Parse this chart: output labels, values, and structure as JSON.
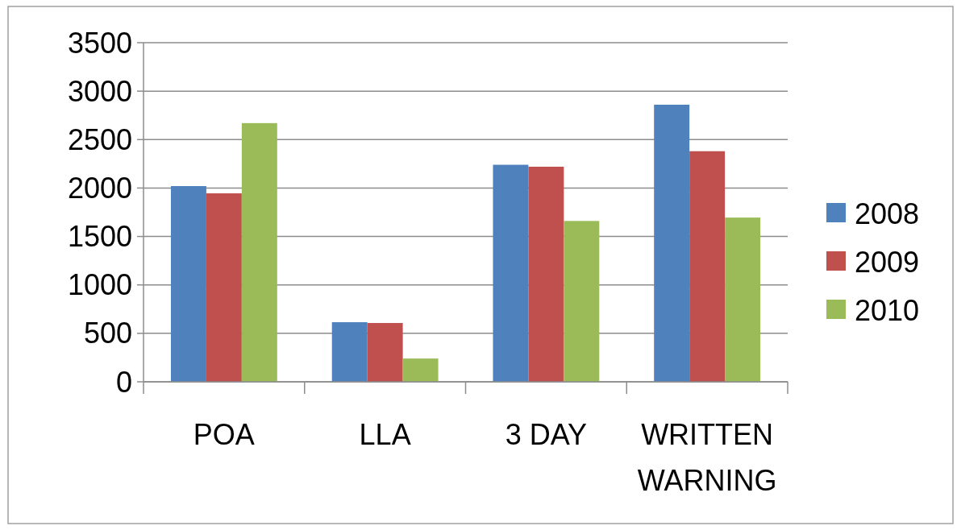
{
  "chart_data": {
    "type": "bar",
    "categories": [
      "POA",
      "LLA",
      "3 DAY",
      "WRITTEN WARNING"
    ],
    "series": [
      {
        "name": "2008",
        "color": "#4f81bd",
        "values": [
          2020,
          615,
          2240,
          2860
        ]
      },
      {
        "name": "2009",
        "color": "#c0504d",
        "values": [
          1945,
          607,
          2220,
          2380
        ]
      },
      {
        "name": "2010",
        "color": "#9bbb59",
        "values": [
          2670,
          240,
          1660,
          1695
        ]
      }
    ],
    "ylim": [
      0,
      3500
    ],
    "yticks": [
      0,
      500,
      1000,
      1500,
      2000,
      2500,
      3000,
      3500
    ],
    "grid": "y",
    "legend": "right"
  }
}
